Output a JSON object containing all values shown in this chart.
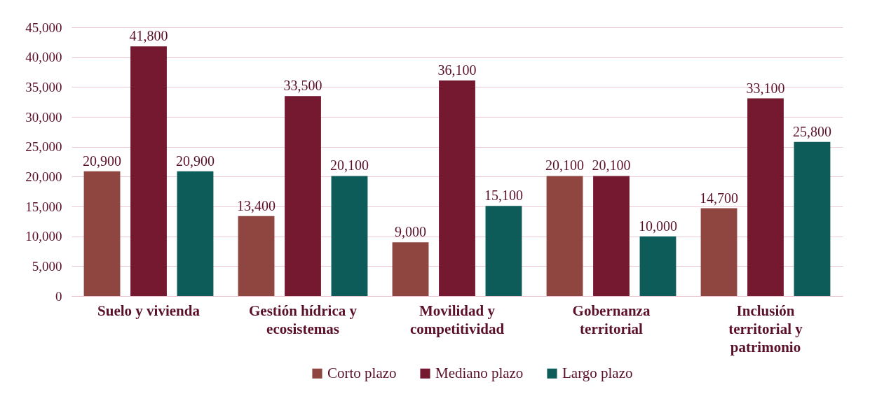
{
  "chart_data": {
    "type": "bar",
    "categories": [
      "Suelo y vivienda",
      "Gestión hídrica y ecosistemas",
      "Movilidad y competitividad",
      "Gobernanza territorial",
      "Inclusión territorial y patrimonio"
    ],
    "series": [
      {
        "name": "Corto plazo",
        "color": "#8f4640",
        "values": [
          20900,
          13400,
          9000,
          20100,
          14700
        ],
        "value_labels": [
          "20,900",
          "13,400",
          "9,000",
          "20,100",
          "14,700"
        ]
      },
      {
        "name": "Mediano plazo",
        "color": "#751931",
        "values": [
          41800,
          33500,
          36100,
          20100,
          33100
        ],
        "value_labels": [
          "41,800",
          "33,500",
          "36,100",
          "20,100",
          "33,100"
        ]
      },
      {
        "name": "Largo plazo",
        "color": "#0e5c5a",
        "values": [
          20900,
          20100,
          15100,
          10000,
          25800
        ],
        "value_labels": [
          "20,900",
          "20,100",
          "15,100",
          "10,000",
          "25,800"
        ]
      }
    ],
    "ylim": [
      0,
      45000
    ],
    "yticks": [
      {
        "value": 0,
        "label": "0"
      },
      {
        "value": 5000,
        "label": "5,000"
      },
      {
        "value": 10000,
        "label": "10,000"
      },
      {
        "value": 15000,
        "label": "15,000"
      },
      {
        "value": 20000,
        "label": "20,000"
      },
      {
        "value": 25000,
        "label": "25,000"
      },
      {
        "value": 30000,
        "label": "30,000"
      },
      {
        "value": 35000,
        "label": "35,000"
      },
      {
        "value": 40000,
        "label": "40,000"
      },
      {
        "value": 45000,
        "label": "45,000"
      }
    ],
    "grid": "y",
    "legend": "bottom"
  }
}
